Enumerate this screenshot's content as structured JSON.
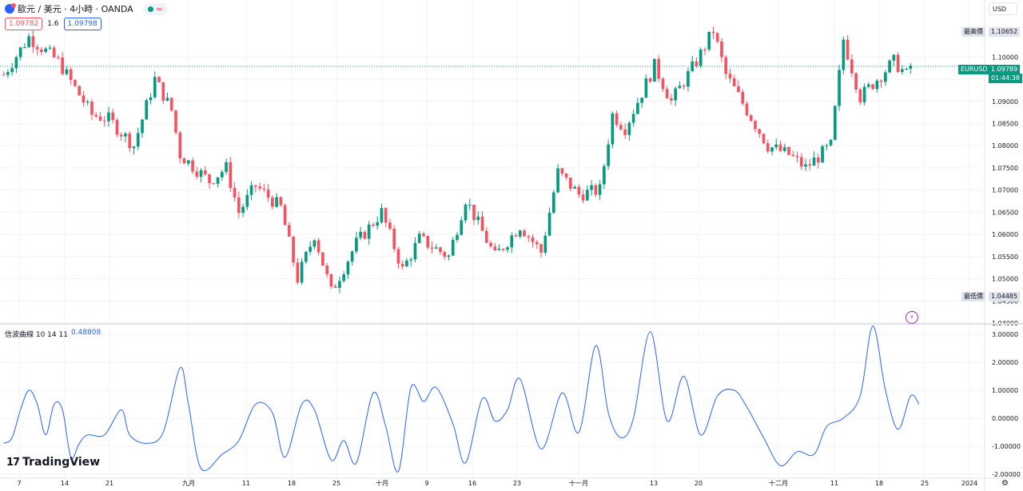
{
  "header": {
    "symbol_title": "歐元 / 美元 · 4小時 · OANDA",
    "status_wave": "≈"
  },
  "quote": {
    "sell": "1.09782",
    "spread": "1.6",
    "buy": "1.09798"
  },
  "currency_button": "USD",
  "price_badges": {
    "high_label": "最高價",
    "high_value": "1.10652",
    "low_label": "最低價",
    "low_value": "1.04485",
    "symbol": "EURUSD",
    "last_value": "1.09789",
    "countdown": "01:44:38"
  },
  "indicator": {
    "label": "信波曲線 10 14 11",
    "value": "0.48808"
  },
  "brand": {
    "name": "TradingView",
    "mark": "17"
  },
  "colors": {
    "up": "#089981",
    "down": "#f7525f",
    "line": "#2962ff",
    "grid": "#f0f3fa"
  },
  "chart_data": [
    {
      "type": "candlestick",
      "title": "",
      "ylim": [
        1.04,
        1.1125
      ],
      "y_ticks": [
        "1.04000",
        "1.04500",
        "1.05000",
        "1.05500",
        "1.06000",
        "1.06500",
        "1.07000",
        "1.07500",
        "1.08000",
        "1.08500",
        "1.09000",
        "1.09500",
        "1.10000"
      ],
      "x_ticks": [
        "7",
        "14",
        "21",
        "九月",
        "11",
        "18",
        "25",
        "十月",
        "9",
        "16",
        "23",
        "十一月",
        "13",
        "20",
        "十二月",
        "11",
        "18",
        "25",
        "2024"
      ],
      "close_path": [
        [
          0,
          1.096
        ],
        [
          6,
          1.1045
        ],
        [
          13,
          1.099
        ],
        [
          21,
          1.087
        ],
        [
          25,
          1.086
        ],
        [
          31,
          1.08
        ],
        [
          36,
          1.095
        ],
        [
          40,
          1.088
        ],
        [
          42,
          1.078
        ],
        [
          49,
          1.072
        ],
        [
          53,
          1.075
        ],
        [
          56,
          1.065
        ],
        [
          60,
          1.071
        ],
        [
          66,
          1.066
        ],
        [
          70,
          1.05
        ],
        [
          74,
          1.06
        ],
        [
          78,
          1.047
        ],
        [
          84,
          1.058
        ],
        [
          90,
          1.065
        ],
        [
          95,
          1.052
        ],
        [
          99,
          1.059
        ],
        [
          106,
          1.055
        ],
        [
          110,
          1.068
        ],
        [
          117,
          1.055
        ],
        [
          123,
          1.062
        ],
        [
          128,
          1.056
        ],
        [
          132,
          1.074
        ],
        [
          137,
          1.069
        ],
        [
          142,
          1.07
        ],
        [
          145,
          1.087
        ],
        [
          148,
          1.084
        ],
        [
          155,
          1.098
        ],
        [
          159,
          1.09
        ],
        [
          165,
          1.099
        ],
        [
          169,
          1.106
        ],
        [
          172,
          1.096
        ],
        [
          177,
          1.088
        ],
        [
          182,
          1.08
        ],
        [
          187,
          1.078
        ],
        [
          191,
          1.075
        ],
        [
          197,
          1.08
        ],
        [
          200,
          1.104
        ],
        [
          204,
          1.091
        ],
        [
          208,
          1.095
        ],
        [
          212,
          1.099
        ],
        [
          215,
          1.096
        ],
        [
          216,
          1.098
        ]
      ]
    },
    {
      "type": "line",
      "title": "",
      "ylim": [
        -2.15,
        3.35
      ],
      "y_ticks": [
        "3.00000",
        "2.00000",
        "1.00000",
        "0.00000",
        "-1.00000",
        "-2.00000"
      ],
      "values": [
        [
          0,
          -0.9
        ],
        [
          2,
          -0.7
        ],
        [
          4,
          0.3
        ],
        [
          6,
          1.0
        ],
        [
          8,
          0.5
        ],
        [
          10,
          -0.6
        ],
        [
          12,
          0.5
        ],
        [
          14,
          0.3
        ],
        [
          16,
          -1.4
        ],
        [
          18,
          -0.9
        ],
        [
          20,
          -0.6
        ],
        [
          24,
          -0.6
        ],
        [
          28,
          0.3
        ],
        [
          30,
          -0.6
        ],
        [
          34,
          -0.9
        ],
        [
          38,
          -0.5
        ],
        [
          42,
          1.8
        ],
        [
          44,
          0.5
        ],
        [
          47,
          -1.8
        ],
        [
          52,
          -1.3
        ],
        [
          56,
          -0.8
        ],
        [
          60,
          0.5
        ],
        [
          64,
          0.2
        ],
        [
          67,
          -1.4
        ],
        [
          71,
          0.5
        ],
        [
          74,
          0.3
        ],
        [
          78,
          -1.5
        ],
        [
          81,
          -0.8
        ],
        [
          84,
          -1.6
        ],
        [
          88,
          0.9
        ],
        [
          91,
          -0.3
        ],
        [
          94,
          -1.9
        ],
        [
          97,
          1.1
        ],
        [
          100,
          0.6
        ],
        [
          103,
          1.1
        ],
        [
          107,
          -0.2
        ],
        [
          110,
          -1.6
        ],
        [
          114,
          0.7
        ],
        [
          117,
          -0.1
        ],
        [
          120,
          0.3
        ],
        [
          123,
          1.4
        ],
        [
          128,
          -1.1
        ],
        [
          133,
          0.9
        ],
        [
          137,
          -0.5
        ],
        [
          141,
          2.6
        ],
        [
          144,
          0.2
        ],
        [
          147,
          -0.7
        ],
        [
          150,
          0.0
        ],
        [
          154,
          3.1
        ],
        [
          158,
          -0.1
        ],
        [
          162,
          1.5
        ],
        [
          166,
          -0.6
        ],
        [
          170,
          0.8
        ],
        [
          174,
          1.0
        ],
        [
          177,
          0.4
        ],
        [
          181,
          -0.7
        ],
        [
          185,
          -1.7
        ],
        [
          189,
          -1.2
        ],
        [
          193,
          -1.3
        ],
        [
          196,
          -0.3
        ],
        [
          200,
          0.0
        ],
        [
          204,
          0.8
        ],
        [
          207,
          3.3
        ],
        [
          210,
          1.0
        ],
        [
          213,
          -0.4
        ],
        [
          216,
          0.8
        ],
        [
          218,
          0.5
        ]
      ]
    }
  ]
}
